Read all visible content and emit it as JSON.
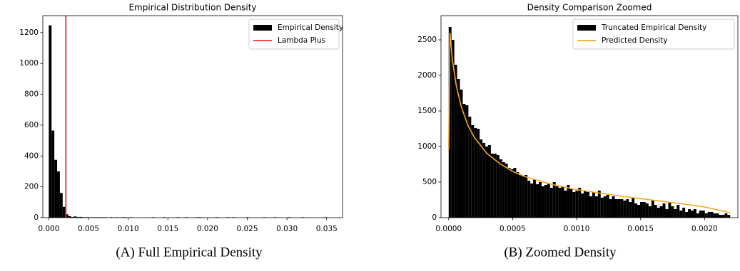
{
  "chart_data": [
    {
      "type": "histogram",
      "title": "Empirical Distribution Density",
      "caption": "(A) Full Empirical Density",
      "xlim": [
        -0.00075,
        0.037
      ],
      "ylim": [
        0,
        1310
      ],
      "xticks": [
        {
          "value": 0,
          "label": "0.000"
        },
        0.005,
        {
          "value": 0.01,
          "label": "0.010"
        },
        0.015,
        {
          "value": 0.02,
          "label": "0.020"
        },
        0.025,
        {
          "value": 0.03,
          "label": "0.030"
        },
        0.035
      ],
      "yticks": [
        0,
        200,
        400,
        600,
        800,
        1000,
        1200
      ],
      "grid": false,
      "legend": "upper right",
      "series": [
        {
          "name": "Empirical Density",
          "type": "histogram",
          "color": "#000000",
          "bins": [
            0,
            0.00035,
            0.0007,
            0.00105,
            0.0014,
            0.00175,
            0.0021,
            0.00245,
            0.0028,
            0.00315,
            0.0035,
            0.00385,
            0.0042,
            0.00455,
            0.0049,
            0.00525,
            0.0056,
            0.00595,
            0.0063,
            0.00665,
            0.007,
            0.00735,
            0.0077,
            0.00805,
            0.0084,
            0.00875,
            0.0091,
            0.00945,
            0.0098,
            0.01015,
            0.0105,
            0.01085,
            0.0112,
            0.01155,
            0.0119,
            0.01225,
            0.0126,
            0.01295,
            0.0133,
            0.01365,
            0.014,
            0.01435,
            0.0147,
            0.01505,
            0.0154,
            0.01575,
            0.0161,
            0.01645,
            0.0168,
            0.01715,
            0.0175,
            0.01785,
            0.0182,
            0.01855,
            0.0189,
            0.01925,
            0.0196,
            0.01995,
            0.0203,
            0.02065,
            0.021,
            0.02135,
            0.0217,
            0.02205,
            0.0224,
            0.02275,
            0.0231,
            0.02345,
            0.0238,
            0.02415,
            0.0245,
            0.02485,
            0.0252,
            0.02555,
            0.0259,
            0.02625,
            0.0266,
            0.02695,
            0.0273,
            0.02765,
            0.028,
            0.02835,
            0.0287,
            0.02905,
            0.0294,
            0.02975,
            0.0301,
            0.03045,
            0.0308,
            0.03115,
            0.0315,
            0.03185,
            0.0322,
            0.03255,
            0.0329,
            0.03325,
            0.0336,
            0.03395,
            0.0343,
            0.03465,
            0.035
          ],
          "values": [
            1247,
            565,
            375,
            300,
            160,
            70,
            22,
            10,
            5,
            8,
            5,
            5,
            3,
            3,
            3,
            3,
            3,
            3,
            3,
            3,
            3,
            0,
            3,
            0,
            3,
            0,
            3,
            3,
            0,
            3,
            0,
            0,
            0,
            0,
            0,
            0,
            0,
            3,
            0,
            0,
            0,
            3,
            0,
            0,
            0,
            0,
            3,
            0,
            0,
            3,
            0,
            0,
            0,
            3,
            3,
            0,
            0,
            0,
            0,
            0,
            3,
            0,
            0,
            0,
            3,
            0,
            3,
            0,
            0,
            0,
            0,
            3,
            0,
            0,
            0,
            0,
            0,
            3,
            0,
            0,
            0,
            3,
            0,
            0,
            0,
            0,
            3,
            0,
            0,
            0,
            0,
            3,
            0,
            0,
            0,
            0,
            0,
            0,
            0,
            3
          ]
        },
        {
          "name": "Lambda Plus",
          "type": "vline",
          "color": "#e8312f",
          "x": 0.00215
        }
      ]
    },
    {
      "type": "histogram",
      "title": "Density Comparison Zoomed",
      "caption": "(B) Zoomed Density",
      "xlim": [
        -6e-05,
        0.00226
      ],
      "ylim": [
        0,
        2840
      ],
      "xticks": [
        {
          "value": 0,
          "label": "0.0000"
        },
        0.0005,
        {
          "value": 0.001,
          "label": "0.0010"
        },
        0.0015,
        {
          "value": 0.002,
          "label": "0.0020"
        }
      ],
      "yticks": [
        0,
        500,
        1000,
        1500,
        2000,
        2500
      ],
      "grid": false,
      "legend": "upper right",
      "series": [
        {
          "name": "Truncated Empirical Density",
          "type": "histogram",
          "color": "#000000",
          "bins": [
            0,
            2.2e-05,
            4.4e-05,
            6.6e-05,
            8.8e-05,
            0.00011,
            0.000132,
            0.000154,
            0.000176,
            0.000198,
            0.00022,
            0.000242,
            0.000264,
            0.000286,
            0.000308,
            0.00033,
            0.000352,
            0.000374,
            0.000396,
            0.000418,
            0.00044,
            0.000462,
            0.000484,
            0.000506,
            0.000528,
            0.00055,
            0.000572,
            0.000594,
            0.000616,
            0.000638,
            0.00066,
            0.000682,
            0.000704,
            0.000726,
            0.000748,
            0.00077,
            0.000792,
            0.000814,
            0.000836,
            0.000858,
            0.00088,
            0.000902,
            0.000924,
            0.000946,
            0.000968,
            0.00099,
            0.001012,
            0.001034,
            0.001056,
            0.001078,
            0.0011,
            0.001122,
            0.001144,
            0.001166,
            0.001188,
            0.00121,
            0.001232,
            0.001254,
            0.001276,
            0.001298,
            0.00132,
            0.001342,
            0.001364,
            0.001386,
            0.001408,
            0.00143,
            0.001452,
            0.001474,
            0.001496,
            0.001518,
            0.00154,
            0.001562,
            0.001584,
            0.001606,
            0.001628,
            0.00165,
            0.001672,
            0.001694,
            0.001716,
            0.001738,
            0.00176,
            0.001782,
            0.001804,
            0.001826,
            0.001848,
            0.00187,
            0.001892,
            0.001914,
            0.001936,
            0.001958,
            0.00198,
            0.002002,
            0.002024,
            0.002046,
            0.002068,
            0.00209,
            0.002112,
            0.002134,
            0.002156,
            0.002178,
            0.0022
          ],
          "values": [
            2680,
            2500,
            2150,
            1950,
            1800,
            1600,
            1580,
            1420,
            1300,
            1260,
            1250,
            1100,
            1050,
            1000,
            1020,
            900,
            900,
            880,
            820,
            780,
            760,
            700,
            680,
            700,
            640,
            600,
            580,
            600,
            520,
            480,
            540,
            470,
            500,
            440,
            460,
            480,
            420,
            500,
            440,
            420,
            440,
            380,
            460,
            400,
            360,
            380,
            420,
            340,
            380,
            360,
            300,
            360,
            300,
            380,
            280,
            300,
            320,
            260,
            300,
            260,
            260,
            260,
            240,
            260,
            220,
            280,
            200,
            180,
            220,
            220,
            200,
            160,
            240,
            180,
            140,
            160,
            200,
            120,
            220,
            160,
            120,
            180,
            100,
            140,
            80,
            120,
            100,
            120,
            60,
            100,
            100,
            60,
            80,
            80,
            60,
            60,
            40,
            40,
            60,
            40
          ]
        },
        {
          "name": "Predicted Density",
          "type": "line",
          "color": "#f5a623",
          "x": [
            0,
            1e-05,
            3e-05,
            6e-05,
            0.0001,
            0.00015,
            0.0002,
            0.0003,
            0.0004,
            0.0005,
            0.0006,
            0.0008,
            0.001,
            0.0012,
            0.0014,
            0.0016,
            0.0018,
            0.002,
            0.0022
          ],
          "values": [
            950,
            2600,
            2200,
            1850,
            1550,
            1300,
            1130,
            900,
            760,
            650,
            575,
            470,
            395,
            340,
            290,
            245,
            200,
            150,
            70
          ]
        }
      ]
    }
  ]
}
